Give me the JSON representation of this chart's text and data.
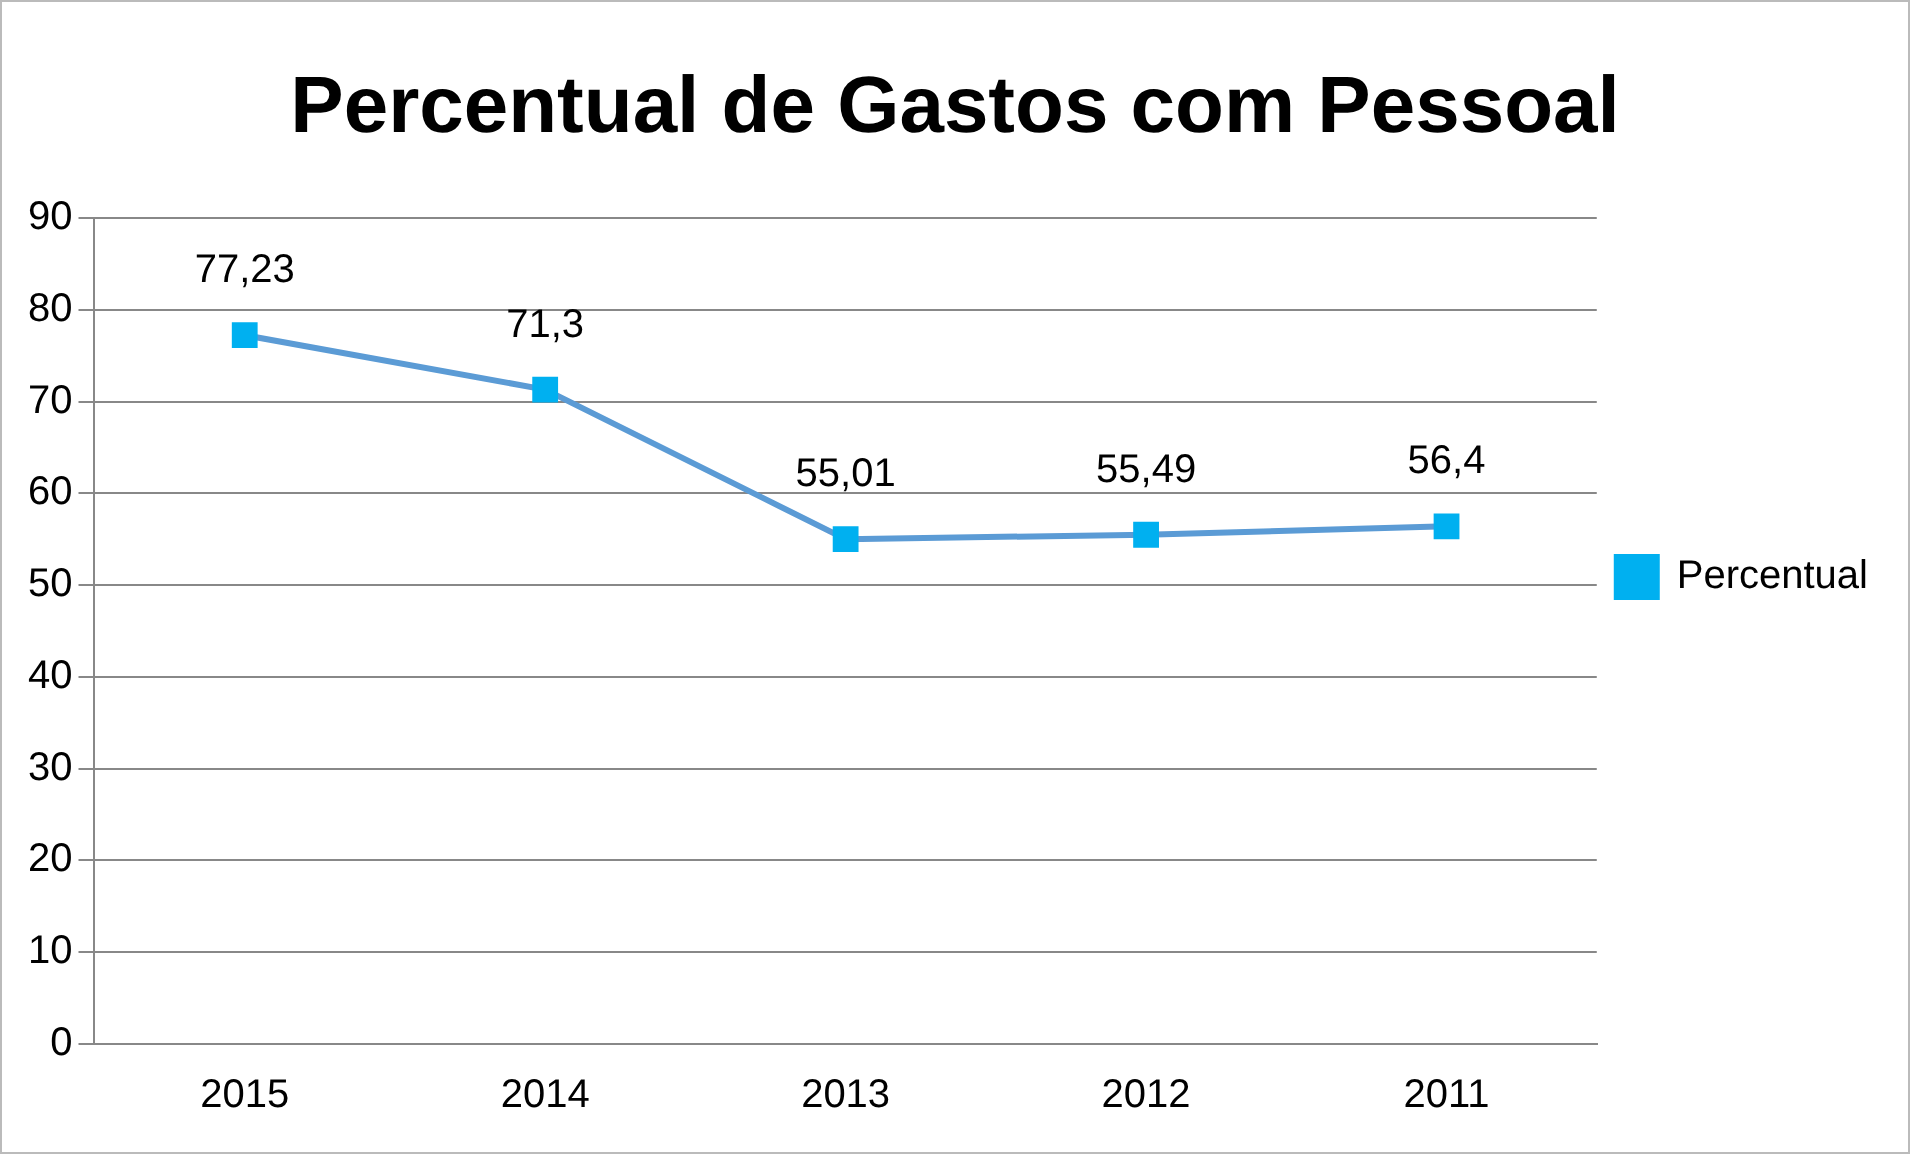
{
  "chart_data": {
    "type": "line",
    "title": "Percentual de Gastos com Pessoal",
    "categories": [
      "2015",
      "2014",
      "2013",
      "2012",
      "2011"
    ],
    "series": [
      {
        "name": "Percentual",
        "color": "#5b9bd5",
        "values": [
          77.23,
          71.3,
          55.01,
          55.49,
          56.4
        ],
        "value_labels": [
          "77,23",
          "71,3",
          "55,01",
          "55,49",
          "56,4"
        ]
      }
    ],
    "ylim": [
      0,
      90
    ],
    "yticks": [
      0,
      10,
      20,
      30,
      40,
      50,
      60,
      70,
      80,
      90
    ],
    "grid": "y",
    "legend": "right",
    "marker": "square",
    "line_style": "solid"
  }
}
